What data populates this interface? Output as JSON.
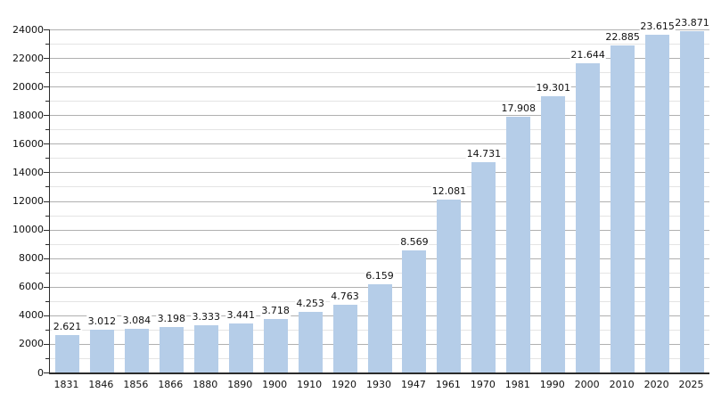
{
  "chart_data": {
    "type": "bar",
    "title": "",
    "xlabel": "",
    "ylabel": "",
    "categories": [
      "1831",
      "1846",
      "1856",
      "1866",
      "1880",
      "1890",
      "1900",
      "1910",
      "1920",
      "1930",
      "1947",
      "1961",
      "1970",
      "1981",
      "1990",
      "2000",
      "2010",
      "2020",
      "2025"
    ],
    "values": [
      2621,
      3012,
      3084,
      3198,
      3333,
      3441,
      3718,
      4253,
      4763,
      6159,
      8569,
      12081,
      14731,
      17908,
      19301,
      21644,
      22885,
      23615,
      23871
    ],
    "value_labels": [
      "2.621",
      "3.012",
      "3.084",
      "3.198",
      "3.333",
      "3.441",
      "3.718",
      "4.253",
      "4.763",
      "6.159",
      "8.569",
      "12.081",
      "14.731",
      "17.908",
      "19.301",
      "21.644",
      "22.885",
      "23.615",
      "23.871"
    ],
    "ylim": [
      0,
      24000
    ],
    "y_major_step": 2000,
    "y_minor_step": 1000,
    "y_tick_labels": [
      "0",
      "2000",
      "4000",
      "6000",
      "8000",
      "10000",
      "12000",
      "14000",
      "16000",
      "18000",
      "20000",
      "22000",
      "24000"
    ],
    "grid": true,
    "legend": false,
    "bar_color": "#b5cde8",
    "major_grid_color": "#b0b0b0",
    "minor_grid_color": "#e4e4e4",
    "axis_color": "#2b2b2b",
    "text_color": "#111111"
  }
}
